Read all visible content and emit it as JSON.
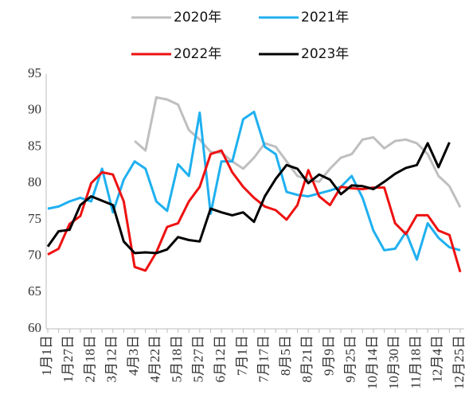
{
  "chart_data": {
    "type": "line",
    "categories": [
      "1月1日",
      null,
      "1月27日",
      null,
      "2月18日",
      null,
      "3月12日",
      null,
      "4月3日",
      null,
      "4月22日",
      null,
      "5月18日",
      null,
      "5月27日",
      null,
      "6月12日",
      null,
      "7月1日",
      null,
      "7月17日",
      null,
      "8月5日",
      null,
      "8月21日",
      null,
      "9月9日",
      null,
      "9月25日",
      null,
      "10月14日",
      null,
      "10月30日",
      null,
      "11月18日",
      null,
      "12月4日",
      null,
      "12月25日"
    ],
    "series": [
      {
        "name": "2020年",
        "color": "#bfbfbf",
        "values": [
          null,
          null,
          null,
          null,
          null,
          null,
          null,
          null,
          85.8,
          84.5,
          91.8,
          91.5,
          90.8,
          87.3,
          86,
          84.3,
          84.2,
          83,
          82,
          83.5,
          85.5,
          85,
          83,
          81,
          80.5,
          80.2,
          82,
          83.5,
          84,
          86,
          86.3,
          84.8,
          85.8,
          86,
          85.5,
          84,
          81,
          79.6,
          76.7
        ]
      },
      {
        "name": "2021年",
        "color": "#1fb0f0",
        "values": [
          76.5,
          76.8,
          77.5,
          78,
          77.5,
          82,
          76,
          80.5,
          83,
          82,
          77.5,
          76.2,
          82.6,
          81,
          89.7,
          75.8,
          83,
          83,
          88.8,
          89.8,
          85,
          84,
          78.8,
          78.4,
          78.2,
          78.6,
          79,
          79.5,
          81,
          78,
          73.5,
          70.8,
          71,
          73.3,
          69.5,
          74.5,
          72.5,
          71.2,
          70.8
        ]
      },
      {
        "name": "2022年",
        "color": "#ee1111",
        "values": [
          70.2,
          71,
          74.4,
          75.5,
          80,
          81.5,
          81.2,
          77.5,
          68.5,
          68,
          70.5,
          74,
          74.5,
          77.5,
          79.5,
          84,
          84.5,
          81.5,
          79.5,
          78,
          76.8,
          76.3,
          75,
          77,
          81.8,
          78.2,
          77,
          79.5,
          79.3,
          79.2,
          79.4,
          79.4,
          74.5,
          73,
          75.6,
          75.6,
          73.5,
          72.9,
          67.8
        ]
      },
      {
        "name": "2023年",
        "color": "#000000",
        "values": [
          71.3,
          73.4,
          73.6,
          77,
          78.2,
          77.6,
          77,
          72,
          70.4,
          70.5,
          70.4,
          70.9,
          72.6,
          72.2,
          72,
          76.5,
          76,
          75.6,
          76,
          74.7,
          78.2,
          80.6,
          82.5,
          82,
          80,
          81.2,
          80.5,
          78.5,
          79.7,
          79.6,
          79.2,
          80.2,
          81.3,
          82.1,
          82.5,
          85.5,
          82.2,
          85.6,
          null
        ]
      }
    ],
    "ylim": [
      60,
      95
    ],
    "yticks": [
      60,
      65,
      70,
      75,
      80,
      85,
      90,
      95
    ],
    "grid": false
  }
}
